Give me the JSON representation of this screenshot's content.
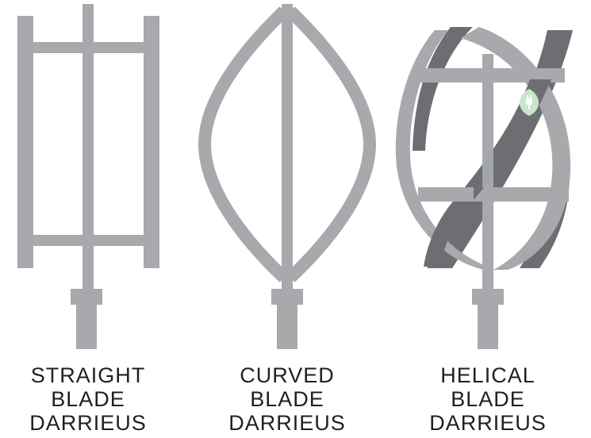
{
  "colors": {
    "blade": "#a7a9ac",
    "blade_dark": "#6d6e71",
    "text": "#231f20",
    "leaf": "#c8e6c9",
    "leaf_symbol": "#ffffff"
  },
  "turbines": [
    {
      "id": "straight",
      "caption_lines": [
        "STRAIGHT",
        "BLADE",
        "DARRIEUS"
      ]
    },
    {
      "id": "curved",
      "caption_lines": [
        "CURVED",
        "BLADE",
        "DARRIEUS"
      ]
    },
    {
      "id": "helical",
      "caption_lines": [
        "HELICAL",
        "BLADE",
        "DARRIEUS"
      ],
      "badge_icon": "leaf-plug-icon"
    }
  ]
}
